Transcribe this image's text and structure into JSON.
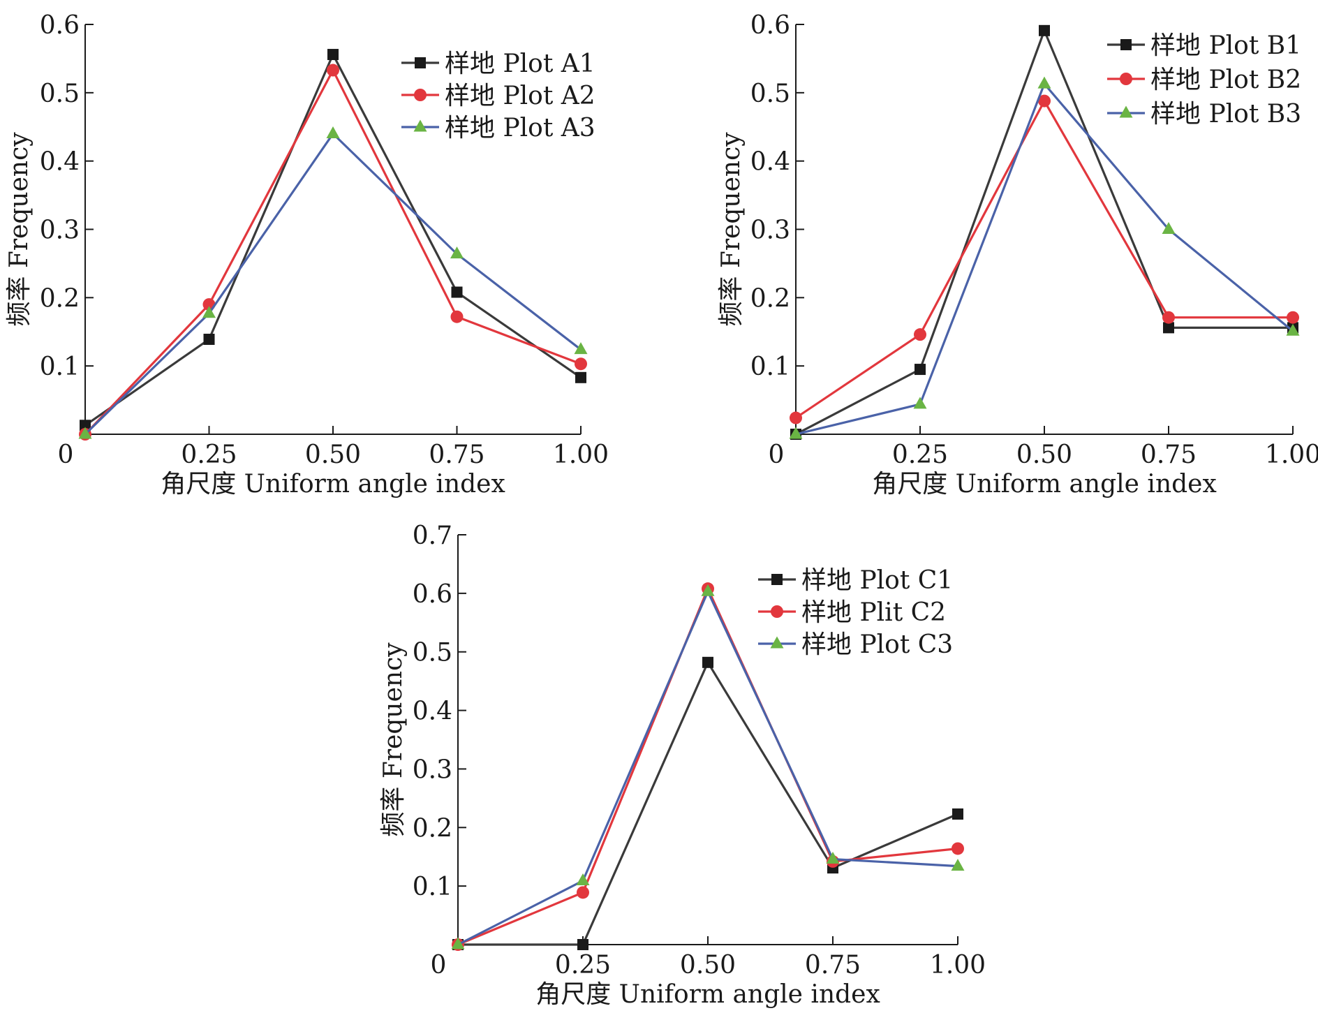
{
  "colors": {
    "series1": "#3a3a3a",
    "series1_marker": "#1a1a1a",
    "series2": "#e2373d",
    "series3": "#4a62a8",
    "series3_marker": "#6ab444",
    "axis": "#1a1a1a"
  },
  "chart_data": [
    {
      "type": "line",
      "title": "",
      "xlabel": "角尺度 Uniform angle index",
      "ylabel": "频率 Frequency",
      "x": [
        0,
        0.25,
        0.5,
        0.75,
        1.0
      ],
      "xlim": [
        0,
        1.0
      ],
      "ylim": [
        0,
        0.6
      ],
      "x_ticks": [
        0.25,
        0.5,
        0.75,
        1.0
      ],
      "x_tick_labels": [
        "0.25",
        "0.50",
        "0.75",
        "1.00"
      ],
      "y_ticks": [
        0.1,
        0.2,
        0.3,
        0.4,
        0.5,
        0.6
      ],
      "y_tick_labels": [
        "0.1",
        "0.2",
        "0.3",
        "0.4",
        "0.5",
        "0.6"
      ],
      "origin_label": "0",
      "legend_position": "top-right",
      "series": [
        {
          "name": "样地 Plot A1",
          "marker": "square",
          "values": [
            0.013,
            0.139,
            0.556,
            0.208,
            0.083
          ]
        },
        {
          "name": "样地 Plot A2",
          "marker": "circle",
          "values": [
            0.0,
            0.19,
            0.533,
            0.172,
            0.103
          ]
        },
        {
          "name": "样地 Plot A3",
          "marker": "triangle",
          "values": [
            0.0,
            0.177,
            0.44,
            0.264,
            0.124
          ]
        }
      ]
    },
    {
      "type": "line",
      "title": "",
      "xlabel": "角尺度 Uniform angle index",
      "ylabel": "频率 Frequency",
      "x": [
        0,
        0.25,
        0.5,
        0.75,
        1.0
      ],
      "xlim": [
        0,
        1.0
      ],
      "ylim": [
        0,
        0.6
      ],
      "x_ticks": [
        0.25,
        0.5,
        0.75,
        1.0
      ],
      "x_tick_labels": [
        "0.25",
        "0.50",
        "0.75",
        "1.00"
      ],
      "y_ticks": [
        0.1,
        0.2,
        0.3,
        0.4,
        0.5,
        0.6
      ],
      "y_tick_labels": [
        "0.1",
        "0.2",
        "0.3",
        "0.4",
        "0.5",
        "0.6"
      ],
      "origin_label": "0",
      "legend_position": "top-right",
      "series": [
        {
          "name": "样地 Plot B1",
          "marker": "square",
          "values": [
            0.0,
            0.095,
            0.591,
            0.156,
            0.156
          ]
        },
        {
          "name": "样地 Plot B2",
          "marker": "circle",
          "values": [
            0.024,
            0.146,
            0.488,
            0.171,
            0.171
          ]
        },
        {
          "name": "样地 Plot B3",
          "marker": "triangle",
          "values": [
            0.0,
            0.044,
            0.513,
            0.3,
            0.151
          ]
        }
      ]
    },
    {
      "type": "line",
      "title": "",
      "xlabel": "角尺度 Uniform angle index",
      "ylabel": "频率 Frequency",
      "x": [
        0,
        0.25,
        0.5,
        0.75,
        1.0
      ],
      "xlim": [
        0,
        1.0
      ],
      "ylim": [
        0,
        0.7
      ],
      "x_ticks": [
        0.25,
        0.5,
        0.75,
        1.0
      ],
      "x_tick_labels": [
        "0.25",
        "0.50",
        "0.75",
        "1.00"
      ],
      "y_ticks": [
        0.1,
        0.2,
        0.3,
        0.4,
        0.5,
        0.6,
        0.7
      ],
      "y_tick_labels": [
        "0.1",
        "0.2",
        "0.3",
        "0.4",
        "0.5",
        "0.6",
        "0.7"
      ],
      "origin_label": "0",
      "legend_position": "top-right",
      "series": [
        {
          "name": "样地 Plot C1",
          "marker": "square",
          "values": [
            0.0,
            0.0,
            0.482,
            0.131,
            0.223
          ]
        },
        {
          "name": "样地 Plit C2",
          "marker": "circle",
          "values": [
            0.0,
            0.089,
            0.608,
            0.142,
            0.164
          ]
        },
        {
          "name": "样地 Plot C3",
          "marker": "triangle",
          "values": [
            0.0,
            0.109,
            0.603,
            0.146,
            0.134
          ]
        }
      ]
    }
  ]
}
